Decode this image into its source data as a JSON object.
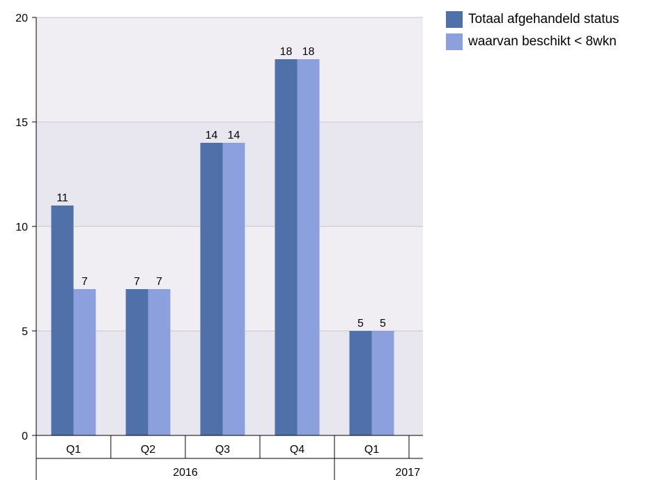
{
  "chart_data": {
    "type": "bar",
    "title": "",
    "xlabel": "",
    "ylabel": "",
    "ylim": [
      0,
      20
    ],
    "yticks": [
      "0",
      "5",
      "10",
      "15",
      "20"
    ],
    "categories": [
      "Q1",
      "Q2",
      "Q3",
      "Q4",
      "Q1"
    ],
    "groups": [
      {
        "label": "2016",
        "count": 4
      },
      {
        "label": "2017",
        "count": 1
      }
    ],
    "series": [
      {
        "name": "Totaal afgehandeld status",
        "color": "#5070aa",
        "values": [
          11,
          7,
          14,
          18,
          5
        ]
      },
      {
        "name": "waarvan beschikt < 8wkn",
        "color": "#8ba0dc",
        "values": [
          7,
          7,
          14,
          18,
          5
        ]
      }
    ],
    "grid": true,
    "legend_position": "top-right",
    "plot_background": [
      "#f1eef3",
      "#e8e6ee"
    ]
  }
}
